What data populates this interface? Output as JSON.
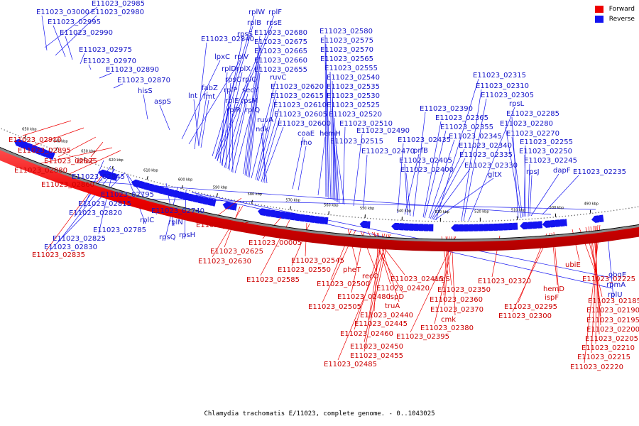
{
  "legend": {
    "forward": {
      "label": "Forward",
      "color": "#ee0000"
    },
    "reverse": {
      "label": "Reverse",
      "color": "#1414f0"
    }
  },
  "caption": "Chlamydia trachomatis E/11023, complete genome. - 0..1043025",
  "ticks": [
    "650 kbp",
    "640 kbp",
    "630 kbp",
    "620 kbp",
    "610 kbp",
    "600 kbp",
    "590 kbp",
    "580 kbp",
    "570 kbp",
    "560 kbp",
    "550 kbp",
    "540 kbp",
    "530 kbp",
    "520 kbp",
    "510 kbp",
    "500 kbp",
    "490 kbp"
  ],
  "reverse_labels": [
    "E11023_02985",
    "E11023_03000",
    "E11023_02980",
    "E11023_02995",
    "E11023_02990",
    "E11023_02975",
    "E11023_02970",
    "E11023_02890",
    "E11023_02870",
    "hisS",
    "aspS",
    "lpxC",
    "rplV",
    "fabZ",
    "lnt",
    "fmt",
    "E11023_02840",
    "rplW",
    "rplF",
    "rplB",
    "rpsE",
    "rpsS",
    "rplD",
    "rplX",
    "rpsC",
    "rplO",
    "rplP",
    "secY",
    "rplE",
    "rpsM",
    "rplR",
    "rplQ",
    "E11023_02680",
    "E11023_02675",
    "E11023_02665",
    "E11023_02660",
    "E11023_02655",
    "ruvC",
    "E11023_02620",
    "E11023_02615",
    "E11023_02610",
    "E11023_02605",
    "E11023_02600",
    "ruvA",
    "ndk",
    "coaE",
    "rho",
    "hemH",
    "E11023_02580",
    "E11023_02575",
    "E11023_02570",
    "E11023_02565",
    "E11023_02555",
    "E11023_02540",
    "E11023_02535",
    "E11023_02530",
    "E11023_02525",
    "E11023_02520",
    "E11023_02510",
    "E11023_02515",
    "E11023_02490",
    "E11023_02470",
    "E11023_02435",
    "prfB",
    "E11023_02405",
    "E11023_02400",
    "E11023_02390",
    "E11023_02365",
    "E11023_02355",
    "E11023_02345",
    "E11023_02340",
    "E11023_02335",
    "E11023_02330",
    "gltX",
    "E11023_02315",
    "E11023_02310",
    "E11023_02305",
    "rpsL",
    "E11023_02285",
    "E11023_02280",
    "E11023_02270",
    "E11023_02255",
    "E11023_02250",
    "E11023_02245",
    "rpsJ",
    "dapF",
    "E11023_02235",
    "E11023_02845",
    "E11023_02795",
    "E11023_02815",
    "E11023_02820",
    "E11023_02785",
    "E11023_02825",
    "E11023_02830",
    "rplC",
    "E11023_02740",
    "rplN",
    "rpsQ",
    "rpsH",
    "obgE",
    "rpmA",
    "rplU"
  ],
  "forward_labels": [
    "E11023_02910",
    "E11023_02895",
    "E11023_02875",
    "dnaE",
    "E11023_02880",
    "E11023_02860",
    "E11023_02835",
    "E11023_02635",
    "E11023_02625",
    "E11023_02630",
    "E11023_00005",
    "E11023_02585",
    "E11023_02545",
    "E11023_02550",
    "pheT",
    "E11023_02500",
    "E11023_02505",
    "recO",
    "E11023_02480",
    "ispD",
    "E11023_02415",
    "E11023_02420",
    "truA",
    "E11023_02440",
    "E11023_02445",
    "E11023_02460",
    "E11023_02450",
    "E11023_02455",
    "E11023_02485",
    "argS",
    "E11023_02350",
    "E11023_02360",
    "E11023_02370",
    "cmk",
    "E11023_02380",
    "E11023_02395",
    "E11023_02320",
    "E11023_02295",
    "E11023_02300",
    "hemD",
    "ispF",
    "ubiE",
    "E11023_02225",
    "E11023_02185",
    "E11023_02190",
    "E11023_02195",
    "E11023_02200",
    "E11023_02205",
    "E11023_02210",
    "E11023_02215",
    "E11023_02220"
  ]
}
